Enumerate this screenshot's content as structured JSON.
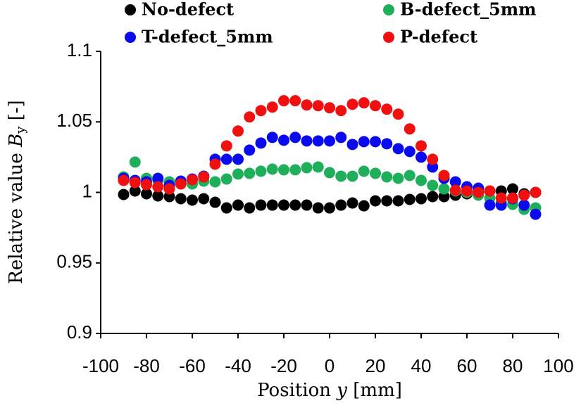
{
  "chart_data": {
    "type": "scatter",
    "xlabel": [
      "Position ",
      "y",
      " [mm]"
    ],
    "ylabel": [
      "Relative value ",
      "B",
      "y",
      " [-]"
    ],
    "x": [
      -90,
      -85,
      -80,
      -75,
      -70,
      -65,
      -60,
      -55,
      -50,
      -45,
      -40,
      -35,
      -30,
      -25,
      -20,
      -15,
      -10,
      -5,
      0,
      5,
      10,
      15,
      20,
      25,
      30,
      35,
      40,
      45,
      50,
      55,
      60,
      65,
      70,
      75,
      80,
      85,
      90
    ],
    "series": [
      {
        "name": "No-defect",
        "color": "#000000",
        "values": [
          0.9985,
          1.001,
          0.999,
          0.9975,
          0.997,
          0.9955,
          0.9945,
          0.9955,
          0.993,
          0.989,
          0.991,
          0.989,
          0.991,
          0.991,
          0.991,
          0.991,
          0.991,
          0.989,
          0.989,
          0.991,
          0.9925,
          0.9905,
          0.994,
          0.994,
          0.994,
          0.995,
          0.9955,
          0.997,
          0.997,
          0.998,
          0.999,
          1.0,
          1.001,
          1.001,
          1.0025,
          0.999,
          1.0
        ]
      },
      {
        "name": "B-defect_5mm",
        "color": "#1fae5a",
        "values": [
          1.011,
          1.0215,
          1.01,
          1.0085,
          1.0075,
          1.0065,
          1.006,
          1.008,
          1.0075,
          1.0095,
          1.013,
          1.0135,
          1.015,
          1.0165,
          1.016,
          1.016,
          1.0175,
          1.018,
          1.014,
          1.0115,
          1.0115,
          1.015,
          1.0135,
          1.011,
          1.01,
          1.012,
          1.0085,
          1.005,
          1.0025,
          1.001,
          1.0,
          0.998,
          0.996,
          0.993,
          0.9915,
          0.988,
          0.989
        ]
      },
      {
        "name": "T-defect_5mm",
        "color": "#0a0aee",
        "values": [
          1.01,
          1.0085,
          1.0075,
          1.01,
          1.005,
          1.008,
          1.0095,
          1.0115,
          1.0235,
          1.0235,
          1.0235,
          1.03,
          1.035,
          1.039,
          1.037,
          1.039,
          1.0365,
          1.0365,
          1.0365,
          1.039,
          1.034,
          1.036,
          1.036,
          1.0345,
          1.031,
          1.029,
          1.025,
          1.018,
          1.01,
          1.0075,
          1.004,
          1.003,
          0.991,
          0.991,
          0.9955,
          0.991,
          0.9845
        ]
      },
      {
        "name": "P-defect",
        "color": "#f01010",
        "values": [
          1.0085,
          1.007,
          1.0055,
          1.004,
          1.0025,
          1.006,
          1.009,
          1.011,
          1.02,
          1.033,
          1.0435,
          1.0535,
          1.058,
          1.0605,
          1.065,
          1.065,
          1.062,
          1.0615,
          1.06,
          1.058,
          1.0625,
          1.0635,
          1.0615,
          1.059,
          1.0555,
          1.045,
          1.033,
          1.0235,
          1.012,
          1.0015,
          1.001,
          1.0,
          1.001,
          0.996,
          0.996,
          0.998,
          1.0
        ]
      }
    ],
    "xlim": [
      -100,
      100
    ],
    "xticks": [
      -100,
      -80,
      -60,
      -40,
      -20,
      0,
      20,
      40,
      60,
      80,
      100
    ],
    "ylim": [
      0.9,
      1.1
    ],
    "yticks": [
      0.9,
      0.95,
      1,
      1.05,
      1.1
    ]
  }
}
